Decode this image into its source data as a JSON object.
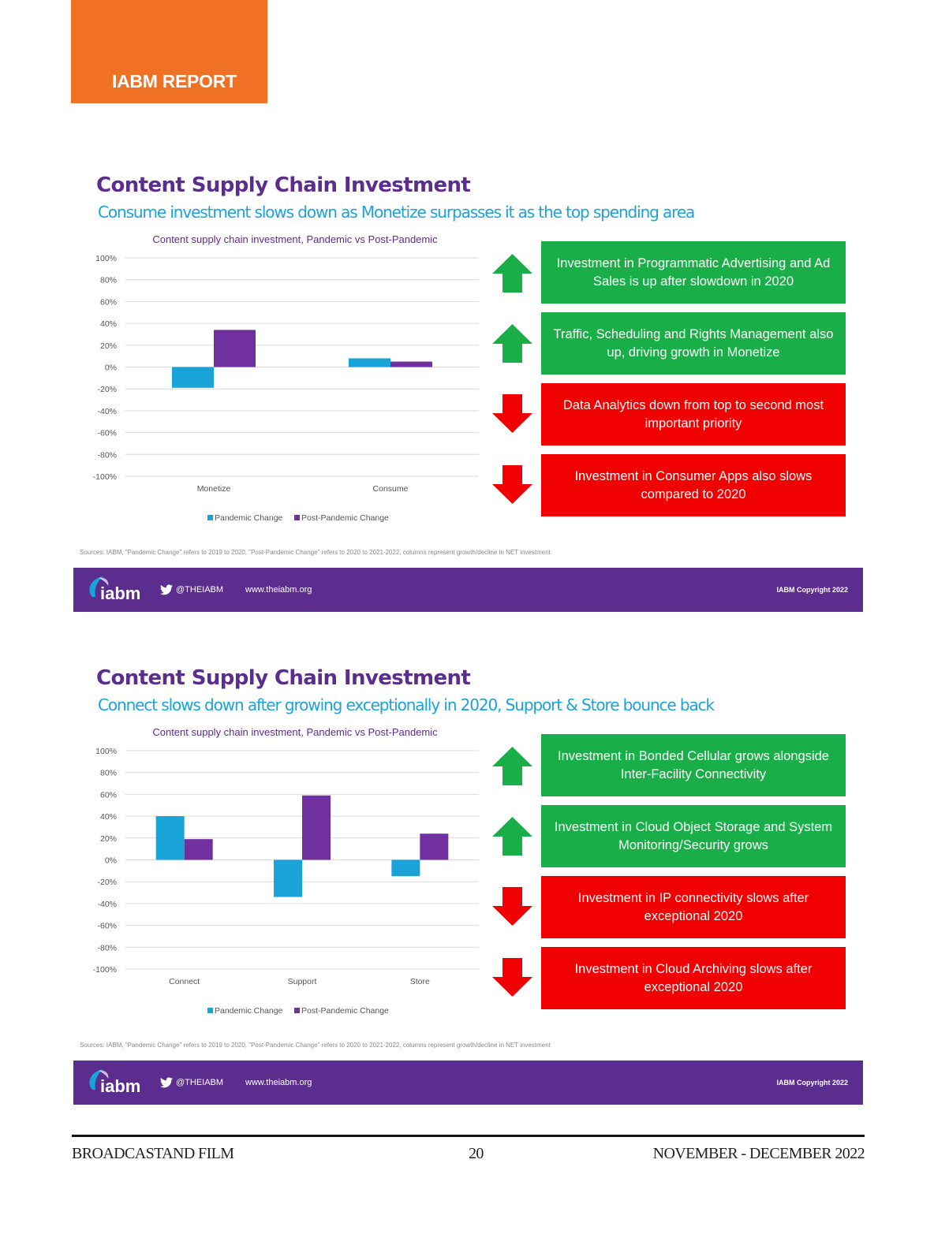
{
  "header": {
    "label": "IABM REPORT"
  },
  "colors": {
    "orange": "#f07124",
    "purple": "#5b2d8e",
    "blue": "#1aa3d9",
    "bar_pandemic": "#1aa3d9",
    "bar_post": "#7030a0",
    "green": "#1aae48",
    "red": "#f00000"
  },
  "slides": [
    {
      "title": "Content Supply Chain Investment",
      "subtitle": "Consume investment slows down as Monetize surpasses it as the top spending area",
      "callouts": [
        {
          "text": "Investment in Programmatic Advertising and Ad Sales is up after slowdown in 2020",
          "trend": "up",
          "color": "green"
        },
        {
          "text": "Traffic, Scheduling and Rights Management also up, driving growth in Monetize",
          "trend": "up",
          "color": "green"
        },
        {
          "text": "Data Analytics down from top to second most important priority",
          "trend": "down",
          "color": "red"
        },
        {
          "text": "Investment in Consumer Apps also slows compared to 2020",
          "trend": "down",
          "color": "red"
        }
      ],
      "sources": "Sources: IABM, \"Pandemic Change\" refers to 2019 to 2020, \"Post-Pandemic Change\" refers to 2020 to 2021-2022, columns represent growth/decline in NET investment",
      "footer": {
        "handle": "@THEIABM",
        "website": "www.theiabm.org",
        "copyright": "IABM Copyright 2022"
      }
    },
    {
      "title": "Content Supply Chain Investment",
      "subtitle": "Connect slows down after growing exceptionally in 2020, Support & Store bounce back",
      "callouts": [
        {
          "text": "Investment in Bonded Cellular grows alongside Inter-Facility Connectivity",
          "trend": "up",
          "color": "green"
        },
        {
          "text": "Investment in Cloud Object Storage and System Monitoring/Security grows",
          "trend": "up",
          "color": "green"
        },
        {
          "text": "Investment in IP connectivity slows after exceptional 2020",
          "trend": "down",
          "color": "red"
        },
        {
          "text": "Investment in Cloud Archiving slows after exceptional 2020",
          "trend": "down",
          "color": "red"
        }
      ],
      "sources": "Sources: IABM, \"Pandemic Change\" refers to 2019 to 2020, \"Post-Pandemic Change\" refers to 2020 to 2021-2022, columns represent growth/decline in NET investment",
      "footer": {
        "handle": "@THEIABM",
        "website": "www.theiabm.org",
        "copyright": "IABM Copyright 2022"
      }
    }
  ],
  "chart_data": [
    {
      "type": "bar",
      "title": "Content supply chain investment, Pandemic vs Post-Pandemic",
      "categories": [
        "Monetize",
        "Consume"
      ],
      "series": [
        {
          "name": "Pandemic Change",
          "values": [
            -19,
            8
          ],
          "color": "#1aa3d9"
        },
        {
          "name": "Post-Pandemic Change",
          "values": [
            34,
            5
          ],
          "color": "#7030a0"
        }
      ],
      "ylim": [
        -100,
        100
      ],
      "yticks": [
        "100%",
        "80%",
        "60%",
        "40%",
        "20%",
        "0%",
        "-20%",
        "-40%",
        "-60%",
        "-80%",
        "-100%"
      ],
      "grid": true,
      "legend": "bottom"
    },
    {
      "type": "bar",
      "title": "Content supply chain investment, Pandemic vs Post-Pandemic",
      "categories": [
        "Connect",
        "Support",
        "Store"
      ],
      "series": [
        {
          "name": "Pandemic Change",
          "values": [
            40,
            -34,
            -15
          ],
          "color": "#1aa3d9"
        },
        {
          "name": "Post-Pandemic Change",
          "values": [
            19,
            59,
            24
          ],
          "color": "#7030a0"
        }
      ],
      "ylim": [
        -100,
        100
      ],
      "yticks": [
        "100%",
        "80%",
        "60%",
        "40%",
        "20%",
        "0%",
        "-20%",
        "-40%",
        "-60%",
        "-80%",
        "-100%"
      ],
      "grid": true,
      "legend": "bottom"
    }
  ],
  "page_footer": {
    "left": "BROADCASTAND FILM",
    "center": "20",
    "right": "NOVEMBER - DECEMBER 2022"
  }
}
